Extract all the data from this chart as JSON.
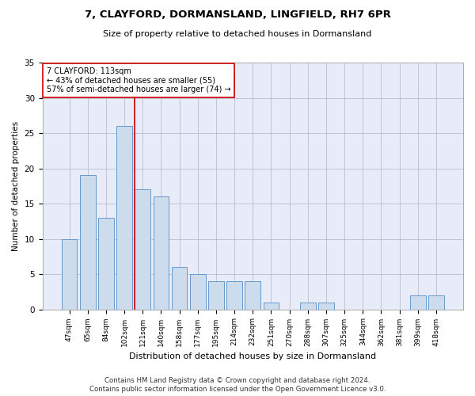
{
  "title1": "7, CLAYFORD, DORMANSLAND, LINGFIELD, RH7 6PR",
  "title2": "Size of property relative to detached houses in Dormansland",
  "xlabel": "Distribution of detached houses by size in Dormansland",
  "ylabel": "Number of detached properties",
  "categories": [
    "47sqm",
    "65sqm",
    "84sqm",
    "102sqm",
    "121sqm",
    "140sqm",
    "158sqm",
    "177sqm",
    "195sqm",
    "214sqm",
    "232sqm",
    "251sqm",
    "270sqm",
    "288sqm",
    "307sqm",
    "325sqm",
    "344sqm",
    "362sqm",
    "381sqm",
    "399sqm",
    "418sqm"
  ],
  "values": [
    10,
    19,
    13,
    26,
    17,
    16,
    6,
    5,
    4,
    4,
    4,
    1,
    0,
    1,
    1,
    0,
    0,
    0,
    0,
    2,
    2
  ],
  "bar_color": "#ccdcec",
  "bar_edgecolor": "#6699cc",
  "bar_linewidth": 0.7,
  "grid_color": "#bbbbcc",
  "background_color": "#e8ecf8",
  "vline_color": "#cc0000",
  "annotation_text": "7 CLAYFORD: 113sqm\n← 43% of detached houses are smaller (55)\n57% of semi-detached houses are larger (74) →",
  "annotation_box_color": "#ffffff",
  "annotation_box_edgecolor": "#cc0000",
  "footnote1": "Contains HM Land Registry data © Crown copyright and database right 2024.",
  "footnote2": "Contains public sector information licensed under the Open Government Licence v3.0.",
  "ylim": [
    0,
    35
  ],
  "yticks": [
    0,
    5,
    10,
    15,
    20,
    25,
    30,
    35
  ],
  "vline_pos": 3.58
}
